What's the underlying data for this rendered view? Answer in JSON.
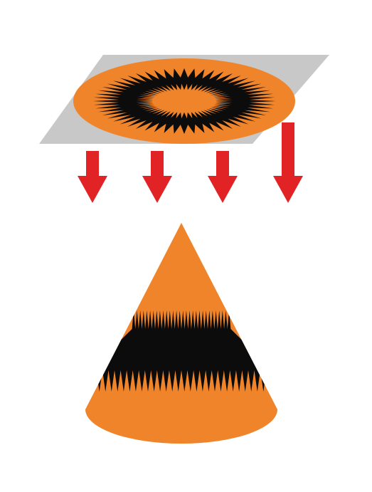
{
  "colors": {
    "background": "#ffffff",
    "plate": "#c8c8c8",
    "orange": "#f0842a",
    "black": "#0c0c0c",
    "arrow": "#e12326"
  },
  "diagram": {
    "plate": {
      "icon": "flat-spiky-ring-pattern"
    },
    "arrows": {
      "count": 4,
      "icon": "down-arrow-icon"
    },
    "cone": {
      "icon": "cone-with-spiky-band"
    }
  }
}
